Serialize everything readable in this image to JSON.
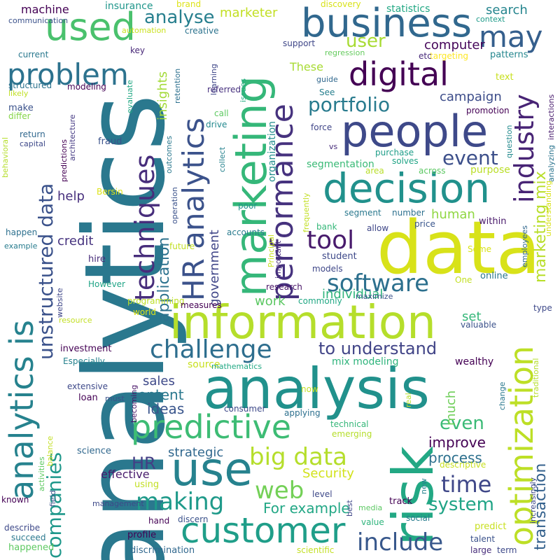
{
  "words": [
    {
      "text": "analytics",
      "color": "#2a788e"
    },
    {
      "text": "data",
      "color": "#d8e219"
    },
    {
      "text": "analysis",
      "color": "#21918c"
    },
    {
      "text": "information",
      "color": "#b5de2b"
    },
    {
      "text": "people",
      "color": "#3e4989"
    },
    {
      "text": "marketing",
      "color": "#35b779"
    },
    {
      "text": "risk",
      "color": "#22a884"
    },
    {
      "text": "decision",
      "color": "#21918c"
    },
    {
      "text": "business",
      "color": "#31688e"
    },
    {
      "text": "use",
      "color": "#26828e"
    },
    {
      "text": "customer",
      "color": "#1f9e89"
    },
    {
      "text": "predictive",
      "color": "#3dbc74"
    },
    {
      "text": "digital",
      "color": "#440154"
    },
    {
      "text": "analytics is",
      "color": "#26828e"
    },
    {
      "text": "used",
      "color": "#4ac16d"
    },
    {
      "text": "optimization",
      "color": "#bddf26"
    },
    {
      "text": "HR analytics",
      "color": "#3b528b"
    },
    {
      "text": "techniques",
      "color": "#472d7b"
    },
    {
      "text": "performance",
      "color": "#46327e"
    },
    {
      "text": "industry",
      "color": "#482475"
    },
    {
      "text": "may",
      "color": "#355f8d"
    },
    {
      "text": "problem",
      "color": "#2c728e"
    },
    {
      "text": "challenge",
      "color": "#2e6e8e"
    },
    {
      "text": "big data",
      "color": "#b5de2b"
    },
    {
      "text": "making",
      "color": "#1f9a8a"
    },
    {
      "text": "include",
      "color": "#38588c"
    },
    {
      "text": "software",
      "color": "#2d708e"
    },
    {
      "text": "to understand",
      "color": "#414487"
    },
    {
      "text": "time",
      "color": "#3f4788"
    },
    {
      "text": "web",
      "color": "#73d056"
    },
    {
      "text": "system",
      "color": "#20a486"
    },
    {
      "text": "transaction",
      "color": "#34618d"
    },
    {
      "text": "unstructured data",
      "color": "#3b528b"
    },
    {
      "text": "companies",
      "color": "#1f988b"
    },
    {
      "text": "tool",
      "color": "#481a6c"
    },
    {
      "text": "portfolio",
      "color": "#297b8e"
    },
    {
      "text": "event",
      "color": "#3c4f8a"
    },
    {
      "text": "user",
      "color": "#a8db34"
    },
    {
      "text": "analyse",
      "color": "#277f8e"
    },
    {
      "text": "marketer",
      "color": "#c2df23"
    },
    {
      "text": "marketing mix",
      "color": "#b8de29"
    },
    {
      "text": "HR",
      "color": "#433e85"
    },
    {
      "text": "even",
      "color": "#3aba76"
    },
    {
      "text": "improve",
      "color": "#440154"
    },
    {
      "text": "process",
      "color": "#2d708e"
    },
    {
      "text": "strategic",
      "color": "#31688e"
    },
    {
      "text": "application",
      "color": "#2c728e"
    },
    {
      "text": "Security",
      "color": "#d2e21b"
    },
    {
      "text": "For example",
      "color": "#22a785"
    },
    {
      "text": "content",
      "color": "#2a788e"
    },
    {
      "text": "ideas",
      "color": "#39558c"
    },
    {
      "text": "sales",
      "color": "#3e4989"
    },
    {
      "text": "effective",
      "color": "#481b6d"
    },
    {
      "text": "insights",
      "color": "#a2da37"
    },
    {
      "text": "government",
      "color": "#404688"
    },
    {
      "text": "work",
      "color": "#5cc863"
    },
    {
      "text": "individual",
      "color": "#2fb47c"
    },
    {
      "text": "set",
      "color": "#35b779"
    },
    {
      "text": "much",
      "color": "#6ece58"
    },
    {
      "text": "human",
      "color": "#90d743"
    },
    {
      "text": "purpose",
      "color": "#bade28"
    },
    {
      "text": "help",
      "color": "#472f7d"
    },
    {
      "text": "credit",
      "color": "#46337f"
    },
    {
      "text": "campaign",
      "color": "#3d4d8a"
    },
    {
      "text": "computer",
      "color": "#450559"
    },
    {
      "text": "search",
      "color": "#25858e"
    },
    {
      "text": "These",
      "color": "#a8db34"
    },
    {
      "text": "segmentation",
      "color": "#3aba76"
    },
    {
      "text": "organization",
      "color": "#228d8d"
    },
    {
      "text": "machine",
      "color": "#440154"
    },
    {
      "text": "insurance",
      "color": "#1f968b"
    },
    {
      "text": "statistics",
      "color": "#22a884"
    },
    {
      "text": "discovery",
      "color": "#d8e219"
    },
    {
      "text": "communication",
      "color": "#3b528b"
    },
    {
      "text": "brand",
      "color": "#dde318"
    },
    {
      "text": "automation",
      "color": "#cae11f"
    },
    {
      "text": "creative",
      "color": "#2c738e"
    },
    {
      "text": "context",
      "color": "#1e9b8a"
    },
    {
      "text": "issues",
      "color": "#25ac82"
    },
    {
      "text": "support",
      "color": "#3f4788"
    },
    {
      "text": "regression",
      "color": "#65cb5e"
    },
    {
      "text": "targeting",
      "color": "#fde725"
    },
    {
      "text": "patterns",
      "color": "#24868e"
    },
    {
      "text": "etc",
      "color": "#472a7a"
    },
    {
      "text": "key",
      "color": "#482878"
    },
    {
      "text": "current",
      "color": "#2a788e"
    },
    {
      "text": "structured",
      "color": "#2c738e"
    },
    {
      "text": "likely",
      "color": "#c0df25"
    },
    {
      "text": "differ",
      "color": "#86d549"
    },
    {
      "text": "make",
      "color": "#3b528b"
    },
    {
      "text": "evaluate",
      "color": "#22a884"
    },
    {
      "text": "modeling",
      "color": "#440154"
    },
    {
      "text": "retention",
      "color": "#2d708e"
    },
    {
      "text": "learning",
      "color": "#3f4788"
    },
    {
      "text": "referred",
      "color": "#46307e"
    },
    {
      "text": "guide",
      "color": "#31688e"
    },
    {
      "text": "See",
      "color": "#277f8e"
    },
    {
      "text": "text",
      "color": "#c8e020"
    },
    {
      "text": "promotion",
      "color": "#440154"
    },
    {
      "text": "question",
      "color": "#238a8d"
    },
    {
      "text": "interactions",
      "color": "#481b6d"
    },
    {
      "text": "analyzing",
      "color": "#2b748e"
    },
    {
      "text": "behavioral",
      "color": "#b5de2b"
    },
    {
      "text": "return",
      "color": "#31688e"
    },
    {
      "text": "capital",
      "color": "#3e4989"
    },
    {
      "text": "predictions",
      "color": "#440154"
    },
    {
      "text": "architecture",
      "color": "#443983"
    },
    {
      "text": "call",
      "color": "#5ec962"
    },
    {
      "text": "drive",
      "color": "#23898e"
    },
    {
      "text": "force",
      "color": "#404688"
    },
    {
      "text": "vs",
      "color": "#472d7b"
    },
    {
      "text": "fraud",
      "color": "#3b528b"
    },
    {
      "text": "purchase",
      "color": "#1f9e89"
    },
    {
      "text": "solves",
      "color": "#20a486"
    },
    {
      "text": "across",
      "color": "#5cc863"
    },
    {
      "text": "outcomes",
      "color": "#2a788e"
    },
    {
      "text": "collect",
      "color": "#26828e"
    },
    {
      "text": "area",
      "color": "#b8de29"
    },
    {
      "text": "frequently",
      "color": "#c2df23"
    },
    {
      "text": "Bersin",
      "color": "#dde318"
    },
    {
      "text": "operation",
      "color": "#3b528b"
    },
    {
      "text": "poor",
      "color": "#21918c"
    },
    {
      "text": "segment",
      "color": "#2a788e"
    },
    {
      "text": "number",
      "color": "#2d708e"
    },
    {
      "text": "accounts",
      "color": "#297b8e"
    },
    {
      "text": "allow",
      "color": "#3f4788"
    },
    {
      "text": "price",
      "color": "#39558c"
    },
    {
      "text": "Principal",
      "color": "#c8e020"
    },
    {
      "text": "bank",
      "color": "#35b779"
    },
    {
      "text": "within",
      "color": "#48186a"
    },
    {
      "text": "understanding",
      "color": "#d8e219"
    },
    {
      "text": "happen",
      "color": "#2d708e"
    },
    {
      "text": "example",
      "color": "#287c8e"
    },
    {
      "text": "future",
      "color": "#c2df23"
    },
    {
      "text": "student",
      "color": "#3e4989"
    },
    {
      "text": "models",
      "color": "#3f4788"
    },
    {
      "text": "Some",
      "color": "#d8e219"
    },
    {
      "text": "employees",
      "color": "#31688e"
    },
    {
      "text": "important",
      "color": "#472d7b"
    },
    {
      "text": "hire",
      "color": "#472c7a"
    },
    {
      "text": "One",
      "color": "#c2df23"
    },
    {
      "text": "online",
      "color": "#2a788e"
    },
    {
      "text": "research",
      "color": "#481467"
    },
    {
      "text": "maximize",
      "color": "#3b528b"
    },
    {
      "text": "However",
      "color": "#20a486"
    },
    {
      "text": "website",
      "color": "#3f4788"
    },
    {
      "text": "programming",
      "color": "#bddf26"
    },
    {
      "text": "measures",
      "color": "#440154"
    },
    {
      "text": "commonly",
      "color": "#22a884"
    },
    {
      "text": "world",
      "color": "#dde318"
    },
    {
      "text": "type",
      "color": "#3e4989"
    },
    {
      "text": "resource",
      "color": "#c2df23"
    },
    {
      "text": "valuable",
      "color": "#3b528b"
    },
    {
      "text": "investment",
      "color": "#440154"
    },
    {
      "text": "Especially",
      "color": "#26828e"
    },
    {
      "text": "wealthy",
      "color": "#440154"
    },
    {
      "text": "traditional",
      "color": "#b5de2b"
    },
    {
      "text": "mix modeling",
      "color": "#2fb47c"
    },
    {
      "text": "source",
      "color": "#c8e020"
    },
    {
      "text": "mathematics",
      "color": "#22a884"
    },
    {
      "text": "extensive",
      "color": "#3e4989"
    },
    {
      "text": "becoming",
      "color": "#481467"
    },
    {
      "text": "loan",
      "color": "#440154"
    },
    {
      "text": "must",
      "color": "#3b528b"
    },
    {
      "text": "now",
      "color": "#c2df23"
    },
    {
      "text": "consumer",
      "color": "#3e4989"
    },
    {
      "text": "real",
      "color": "#b8de29"
    },
    {
      "text": "change",
      "color": "#2a788e"
    },
    {
      "text": "applying",
      "color": "#2d708e"
    },
    {
      "text": "technical",
      "color": "#35b779"
    },
    {
      "text": "emerging",
      "color": "#b5de2b"
    },
    {
      "text": "science",
      "color": "#31688e"
    },
    {
      "text": "descriptive",
      "color": "#c8e020"
    },
    {
      "text": "activities",
      "color": "#5ec962"
    },
    {
      "text": "balance",
      "color": "#c2df23"
    },
    {
      "text": "field",
      "color": "#3b528b"
    },
    {
      "text": "using",
      "color": "#c2df23"
    },
    {
      "text": "new",
      "color": "#26828e"
    },
    {
      "text": "increasingly",
      "color": "#3e4989"
    },
    {
      "text": "known",
      "color": "#440154"
    },
    {
      "text": "management",
      "color": "#3e4989"
    },
    {
      "text": "best",
      "color": "#3f4788"
    },
    {
      "text": "media",
      "color": "#5cc863"
    },
    {
      "text": "track",
      "color": "#440154"
    },
    {
      "text": "social",
      "color": "#287c8e"
    },
    {
      "text": "hand",
      "color": "#440154"
    },
    {
      "text": "discern",
      "color": "#3b528b"
    },
    {
      "text": "value",
      "color": "#2fb47c"
    },
    {
      "text": "predict",
      "color": "#c8e020"
    },
    {
      "text": "describe",
      "color": "#3e4989"
    },
    {
      "text": "succeed",
      "color": "#2a788e"
    },
    {
      "text": "profile",
      "color": "#440154"
    },
    {
      "text": "talent",
      "color": "#3b528b"
    },
    {
      "text": "happened",
      "color": "#5ec962"
    },
    {
      "text": "discrimination",
      "color": "#31688e"
    },
    {
      "text": "scientific",
      "color": "#c2df23"
    },
    {
      "text": "large",
      "color": "#472d7b"
    },
    {
      "text": "term",
      "color": "#3e4989"
    },
    {
      "text": "level",
      "color": "#3e4989"
    }
  ]
}
